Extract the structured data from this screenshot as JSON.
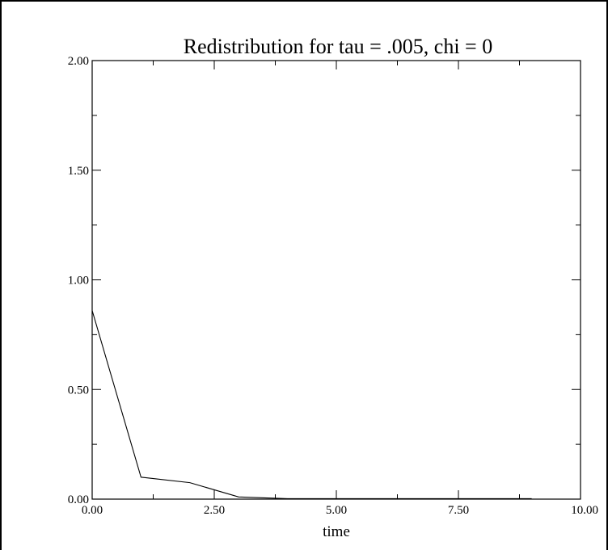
{
  "chart_data": {
    "type": "line",
    "title": "Redistribution for tau = .005, chi = 0",
    "xlabel": "time",
    "ylabel": "",
    "xlim": [
      0,
      10
    ],
    "ylim": [
      0,
      2
    ],
    "grid": false,
    "x_ticks": [
      "0.00",
      "2.50",
      "5.00",
      "7.50",
      "10.00"
    ],
    "y_ticks": [
      "0.00",
      "0.50",
      "1.00",
      "1.50",
      "2.00"
    ],
    "x_tick_values": [
      0,
      2.5,
      5,
      7.5,
      10
    ],
    "y_tick_values": [
      0,
      0.5,
      1,
      1.5,
      2
    ],
    "x_minor_step": 1.25,
    "y_minor_step": 0.25,
    "series": [
      {
        "x": [
          0,
          1,
          2,
          3,
          4,
          5,
          6,
          7,
          8,
          9
        ],
        "y": [
          0.86,
          0.1,
          0.075,
          0.01,
          0.002,
          0.002,
          0.002,
          0.002,
          0.002,
          0.002
        ],
        "color": "#000000"
      }
    ]
  }
}
